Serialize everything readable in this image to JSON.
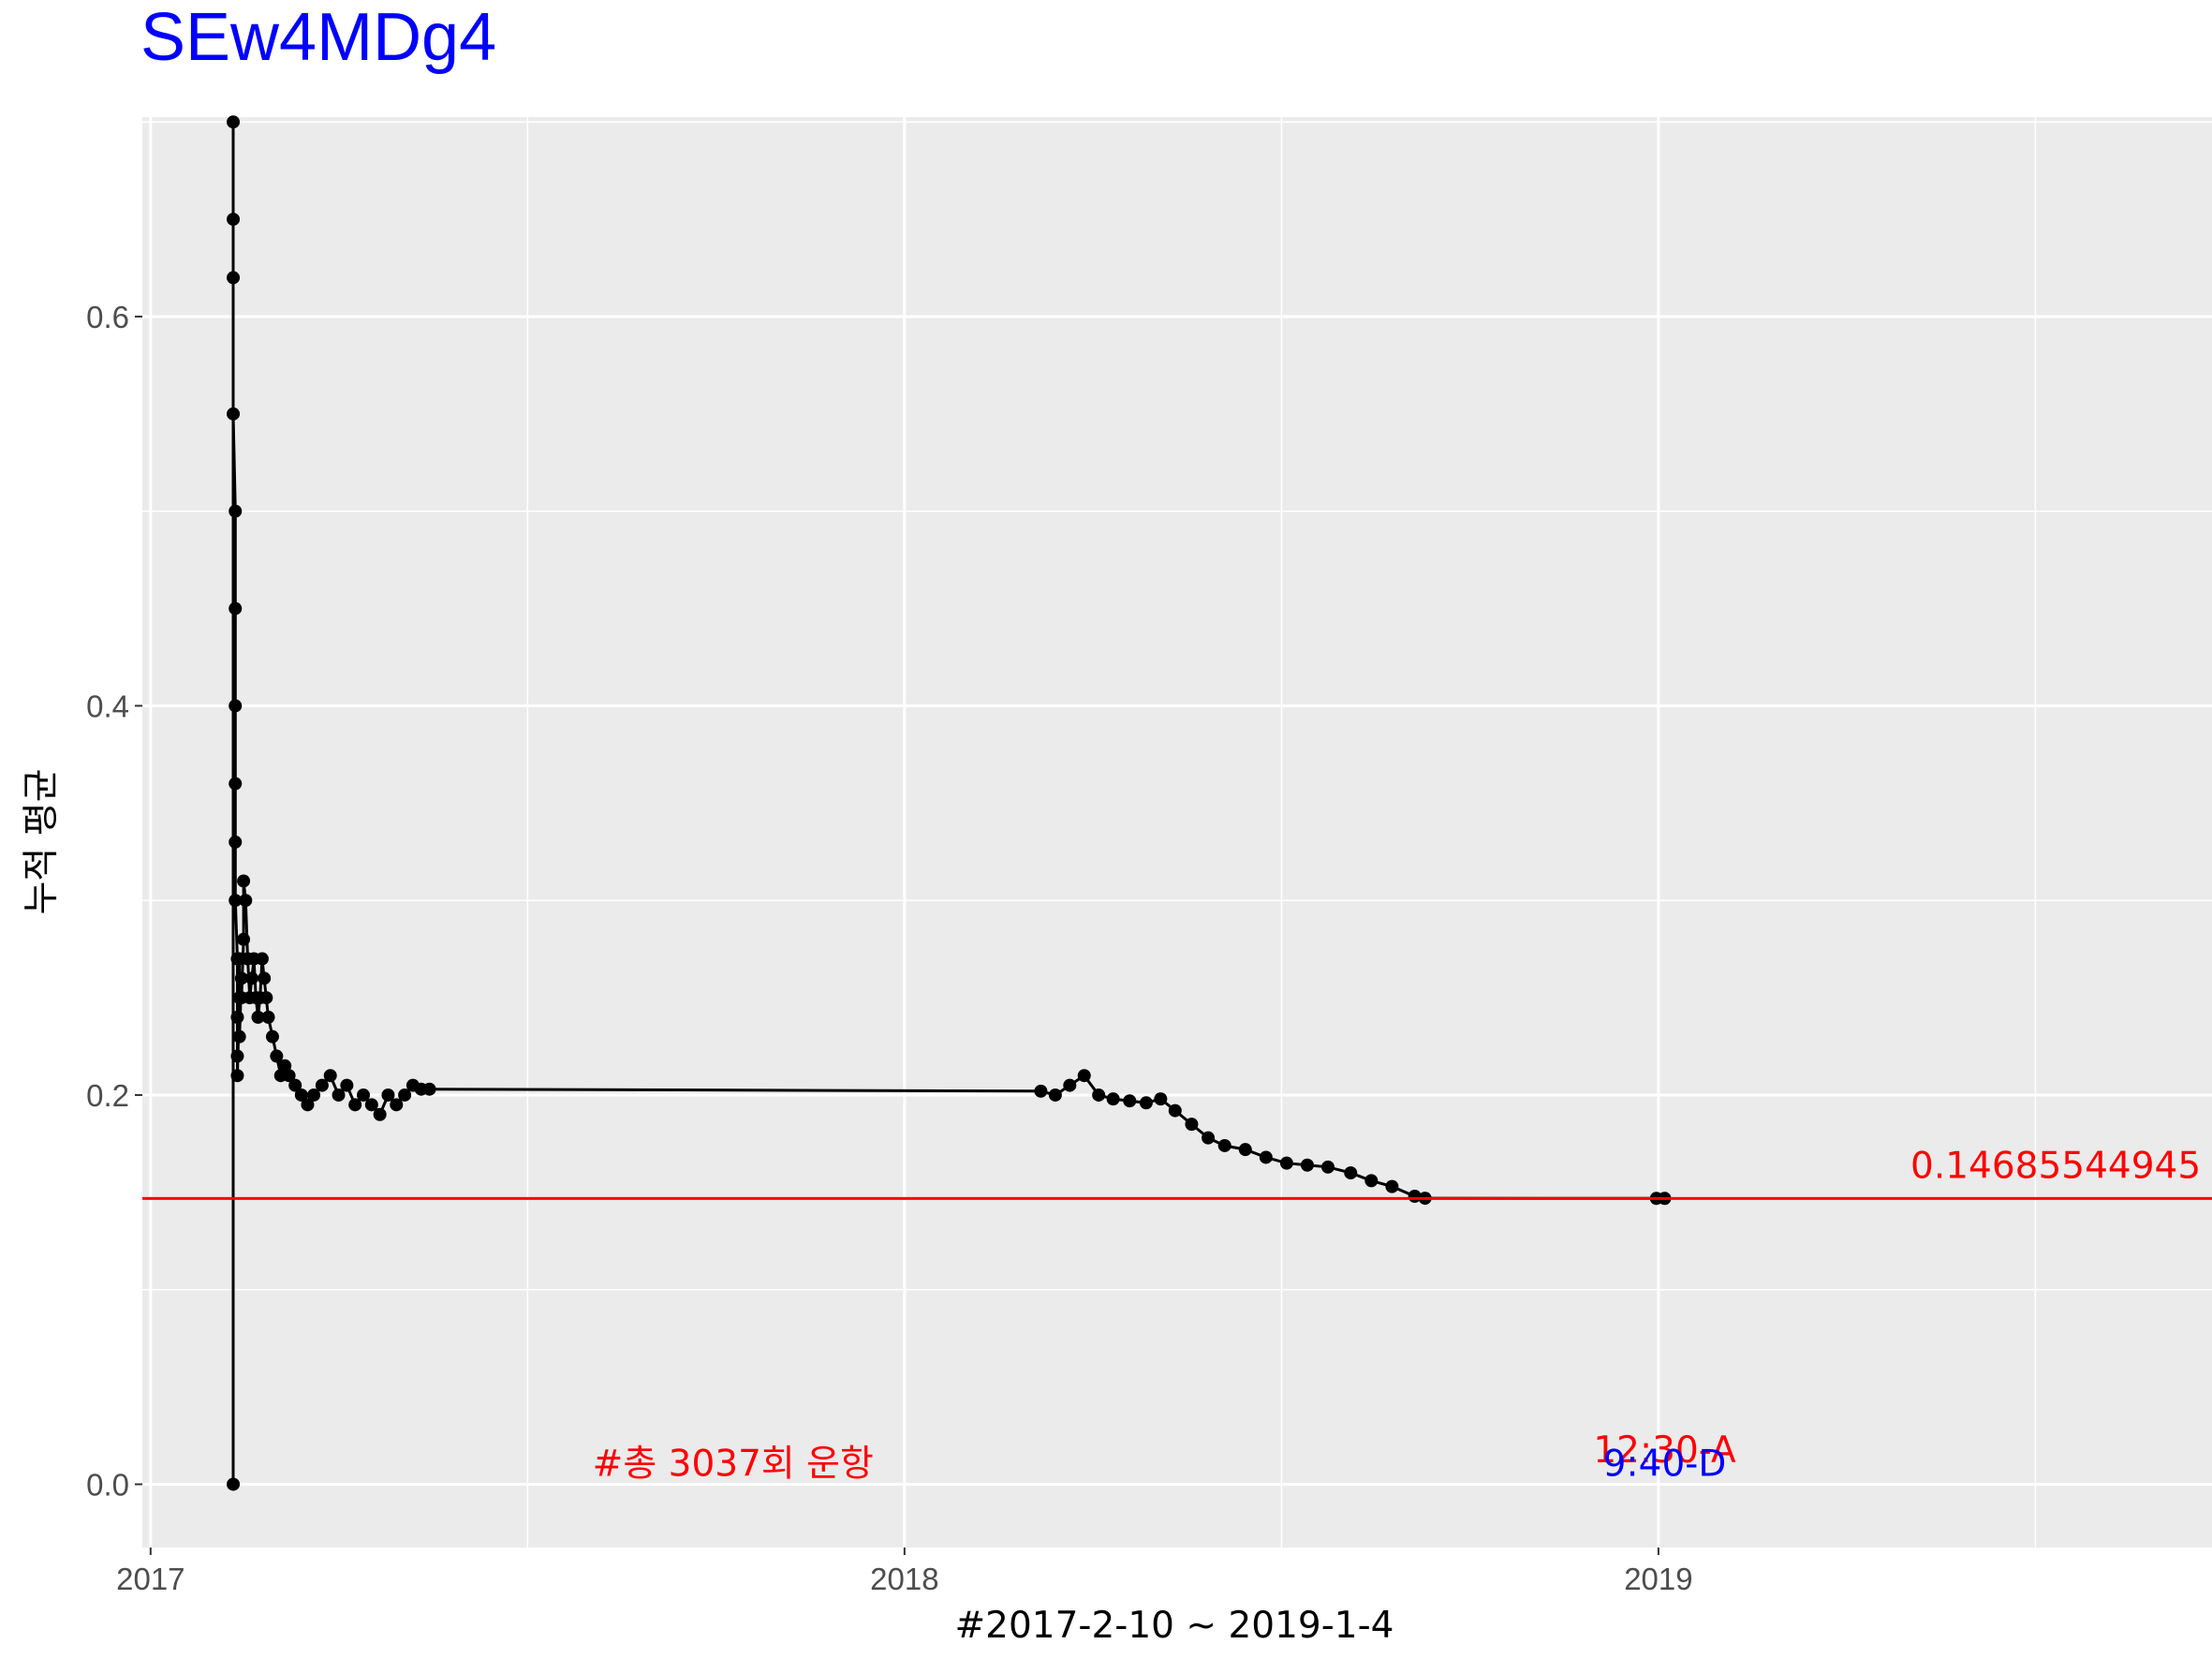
{
  "chart_data": {
    "type": "line",
    "title": "SEw4MDg4",
    "title_color": "#0000ff",
    "xlabel": "#2017-2-10 ~ 2019-1-4",
    "ylabel": "누적 평균",
    "x_axis_type": "date",
    "xlim": [
      "2016-12-28",
      "2019-09-26"
    ],
    "ylim": [
      -0.0325,
      0.7025
    ],
    "x_ticks": [
      "2017",
      "2018",
      "2019"
    ],
    "x_tick_dates": [
      "2017-01-01",
      "2018-01-01",
      "2019-01-01"
    ],
    "y_ticks": [
      0.0,
      0.2,
      0.4,
      0.6
    ],
    "y_tick_labels": [
      "0.0",
      "0.2",
      "0.4",
      "0.6"
    ],
    "grid": true,
    "panel_background": "#ebebeb",
    "series": [
      {
        "color": "#000000",
        "x": [
          "2017-02-10",
          "2017-02-10",
          "2017-02-10",
          "2017-02-10",
          "2017-02-10",
          "2017-02-11",
          "2017-02-11",
          "2017-02-11",
          "2017-02-11",
          "2017-02-11",
          "2017-02-11",
          "2017-02-12",
          "2017-02-12",
          "2017-02-12",
          "2017-02-12",
          "2017-02-13",
          "2017-02-13",
          "2017-02-13",
          "2017-02-14",
          "2017-02-14",
          "2017-02-15",
          "2017-02-15",
          "2017-02-16",
          "2017-02-17",
          "2017-02-18",
          "2017-02-19",
          "2017-02-20",
          "2017-02-21",
          "2017-02-22",
          "2017-02-23",
          "2017-02-24",
          "2017-02-25",
          "2017-02-26",
          "2017-02-27",
          "2017-03-01",
          "2017-03-03",
          "2017-03-05",
          "2017-03-07",
          "2017-03-09",
          "2017-03-12",
          "2017-03-15",
          "2017-03-18",
          "2017-03-21",
          "2017-03-25",
          "2017-03-29",
          "2017-04-02",
          "2017-04-06",
          "2017-04-10",
          "2017-04-14",
          "2017-04-18",
          "2017-04-22",
          "2017-04-26",
          "2017-04-30",
          "2017-05-04",
          "2017-05-08",
          "2017-05-12",
          "2017-05-16",
          "2018-03-08",
          "2018-03-15",
          "2018-03-22",
          "2018-03-29",
          "2018-04-05",
          "2018-04-12",
          "2018-04-20",
          "2018-04-28",
          "2018-05-05",
          "2018-05-12",
          "2018-05-20",
          "2018-05-28",
          "2018-06-05",
          "2018-06-15",
          "2018-06-25",
          "2018-07-05",
          "2018-07-15",
          "2018-07-25",
          "2018-08-05",
          "2018-08-15",
          "2018-08-25",
          "2018-09-05",
          "2018-09-10",
          "2018-12-31",
          "2019-01-04"
        ],
        "y": [
          0.0,
          0.7,
          0.65,
          0.62,
          0.55,
          0.5,
          0.45,
          0.4,
          0.36,
          0.33,
          0.3,
          0.27,
          0.24,
          0.22,
          0.21,
          0.25,
          0.27,
          0.23,
          0.26,
          0.25,
          0.28,
          0.31,
          0.3,
          0.27,
          0.25,
          0.26,
          0.27,
          0.25,
          0.24,
          0.25,
          0.27,
          0.26,
          0.25,
          0.24,
          0.23,
          0.22,
          0.21,
          0.215,
          0.21,
          0.205,
          0.2,
          0.195,
          0.2,
          0.205,
          0.21,
          0.2,
          0.205,
          0.195,
          0.2,
          0.195,
          0.19,
          0.2,
          0.195,
          0.2,
          0.205,
          0.203,
          0.203,
          0.202,
          0.2,
          0.205,
          0.21,
          0.2,
          0.198,
          0.197,
          0.196,
          0.198,
          0.192,
          0.185,
          0.178,
          0.174,
          0.172,
          0.168,
          0.165,
          0.164,
          0.163,
          0.16,
          0.156,
          0.153,
          0.148,
          0.147,
          0.1469,
          0.1469
        ]
      }
    ],
    "hline": {
      "y": 0.14685544945,
      "label": "0.14685544945",
      "color": "#ff0000"
    },
    "annotations": [
      {
        "text": "#총 3037회 운항",
        "x": "2017-10-10",
        "y": 0.011,
        "color": "#ff0000"
      },
      {
        "text": "12:30-A",
        "x": "2019-01-04",
        "y": 0.018,
        "color": "#ff0000"
      },
      {
        "text": "9:40-D",
        "x": "2019-01-04",
        "y": 0.011,
        "color": "#0000ff"
      }
    ]
  }
}
